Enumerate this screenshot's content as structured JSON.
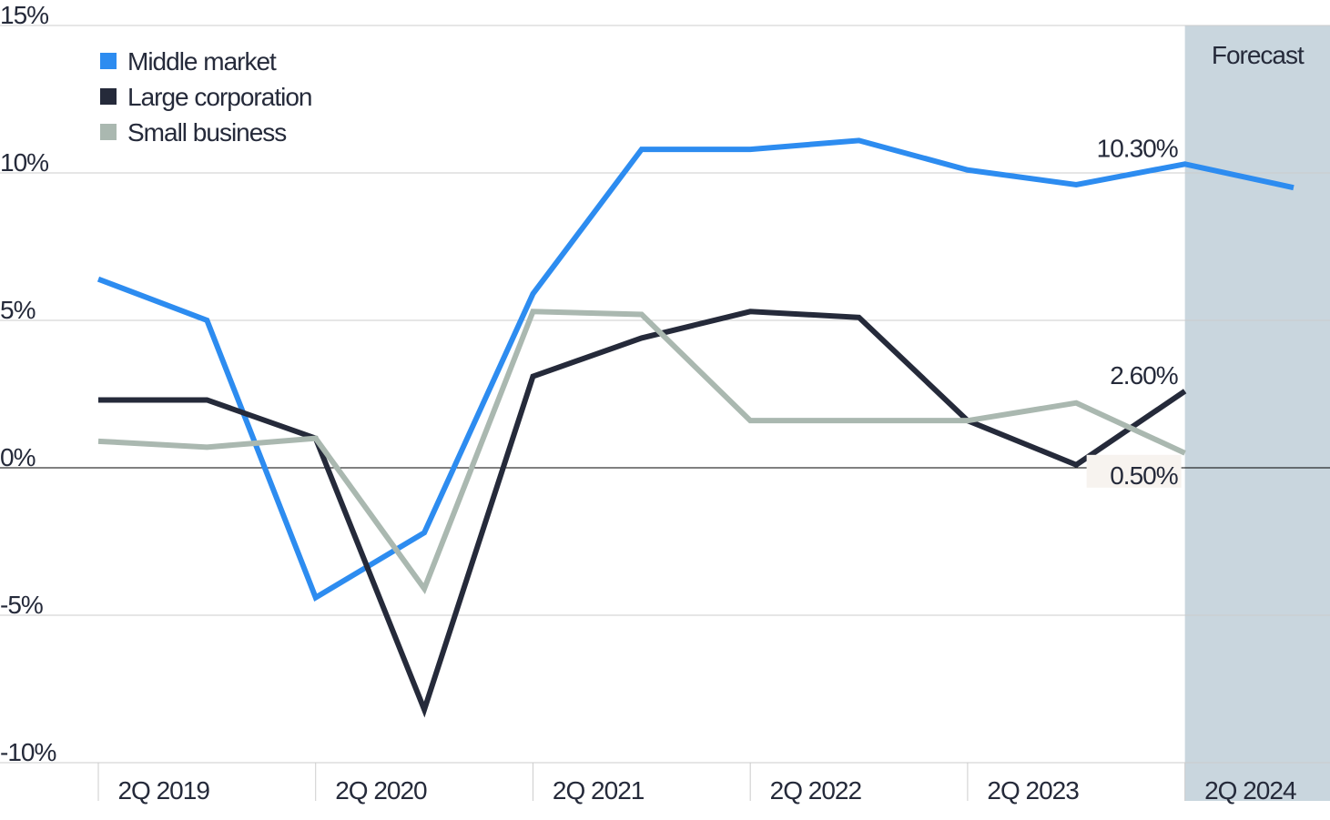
{
  "chart_data": {
    "type": "line",
    "categories": [
      "2Q 2019",
      null,
      "2Q 2020",
      null,
      "2Q 2021",
      null,
      "2Q 2022",
      null,
      "2Q 2023",
      null,
      "2Q 2024",
      null
    ],
    "series": [
      {
        "name": "Middle market",
        "color": "#2d8cf0",
        "values": [
          6.4,
          5.0,
          -4.4,
          -2.2,
          5.9,
          10.8,
          10.8,
          11.1,
          10.1,
          9.6,
          10.3,
          9.5
        ],
        "value_labels": [
          null,
          null,
          null,
          null,
          null,
          null,
          null,
          null,
          null,
          null,
          "10.30%",
          null
        ]
      },
      {
        "name": "Large corporation",
        "color": "#252a3a",
        "values": [
          2.3,
          2.3,
          1.0,
          -8.2,
          3.1,
          4.4,
          5.3,
          5.1,
          1.6,
          0.1,
          2.6,
          null
        ],
        "value_labels": [
          null,
          null,
          null,
          null,
          null,
          null,
          null,
          null,
          null,
          null,
          "2.60%",
          null
        ]
      },
      {
        "name": "Small business",
        "color": "#aab8b0",
        "values": [
          0.9,
          0.7,
          1.0,
          -4.1,
          5.3,
          5.2,
          1.6,
          1.6,
          1.6,
          2.2,
          0.5,
          null
        ],
        "value_labels": [
          null,
          null,
          null,
          null,
          null,
          null,
          null,
          null,
          null,
          null,
          "0.50%",
          null
        ]
      }
    ],
    "ylim": [
      -10,
      15
    ],
    "yticks": [
      {
        "value": -10,
        "label": "-10%"
      },
      {
        "value": -5,
        "label": "-5%"
      },
      {
        "value": 0,
        "label": "0%"
      },
      {
        "value": 5,
        "label": "5%"
      },
      {
        "value": 10,
        "label": "10%"
      },
      {
        "value": 15,
        "label": "15%"
      }
    ],
    "grid": true,
    "forecast": {
      "label": "Forecast",
      "from_index": 10,
      "color": "#c9d6de"
    }
  }
}
